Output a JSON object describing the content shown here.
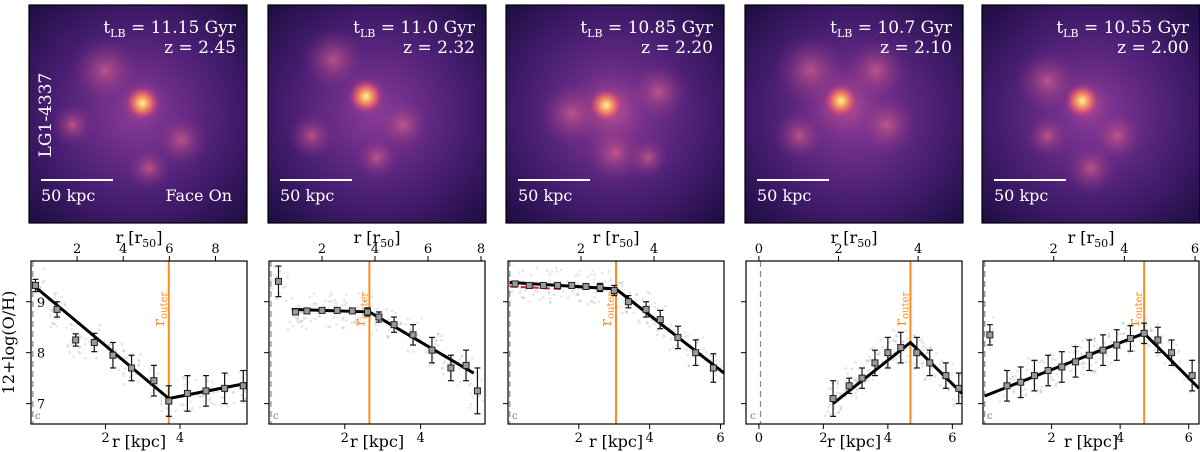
{
  "figure": {
    "galaxy_id": "LG1-4337",
    "image_panels": [
      {
        "t_lb_prefix": "t",
        "t_lb_sub": "LB",
        "t_lb_value": " = 11.15 Gyr",
        "redshift": "z = 2.45",
        "scale_label": "50 kpc",
        "view_label": "Face On"
      },
      {
        "t_lb_prefix": "t",
        "t_lb_sub": "LB",
        "t_lb_value": " = 11.0 Gyr",
        "redshift": "z = 2.32",
        "scale_label": "50 kpc",
        "view_label": ""
      },
      {
        "t_lb_prefix": "t",
        "t_lb_sub": "LB",
        "t_lb_value": " = 10.85 Gyr",
        "redshift": "z = 2.20",
        "scale_label": "50 kpc",
        "view_label": ""
      },
      {
        "t_lb_prefix": "t",
        "t_lb_sub": "LB",
        "t_lb_value": " = 10.7 Gyr",
        "redshift": "z = 2.10",
        "scale_label": "50 kpc",
        "view_label": ""
      },
      {
        "t_lb_prefix": "t",
        "t_lb_sub": "LB",
        "t_lb_value": " = 10.55 Gyr",
        "redshift": "z = 2.00",
        "scale_label": "50 kpc",
        "view_label": ""
      }
    ]
  },
  "chart_data": [
    {
      "type": "scatter",
      "title": "",
      "xlabel": "r [kpc]",
      "ylabel": "12+log(O/H)",
      "top_xlabel": "r [r",
      "top_xlabel_sub": "50",
      "top_xlabel_end": "]",
      "xlim": [
        0,
        5.8
      ],
      "ylim": [
        6.6,
        9.8
      ],
      "yticks": [
        7,
        8,
        9
      ],
      "xticks": [
        2,
        4
      ],
      "top_ticks": [
        2,
        4,
        6,
        8
      ],
      "top_scale": 1.615,
      "r_outer": 3.7,
      "r_outer_label": "r",
      "r_outer_sub": "outer",
      "r_inner_dash": 0.05,
      "fit": {
        "x": [
          0.1,
          3.7,
          5.8
        ],
        "y": [
          9.3,
          7.1,
          7.4
        ]
      },
      "red_fit": {
        "x": [
          0.1,
          0.9
        ],
        "y": [
          9.3,
          8.8
        ]
      },
      "points": {
        "x": [
          0.12,
          0.7,
          1.2,
          1.7,
          2.2,
          2.7,
          3.3,
          3.7,
          4.2,
          4.7,
          5.2,
          5.7
        ],
        "y": [
          9.32,
          8.85,
          8.25,
          8.2,
          7.95,
          7.7,
          7.45,
          7.05,
          7.2,
          7.25,
          7.3,
          7.35
        ],
        "err": [
          0.12,
          0.15,
          0.12,
          0.18,
          0.25,
          0.25,
          0.3,
          0.3,
          0.35,
          0.3,
          0.3,
          0.3
        ]
      }
    },
    {
      "type": "scatter",
      "title": "",
      "xlabel": "r [kpc]",
      "ylabel": "",
      "top_xlabel": "r [r",
      "top_xlabel_sub": "50",
      "top_xlabel_end": "]",
      "xlim": [
        0,
        5.7
      ],
      "ylim": [
        6.6,
        9.8
      ],
      "yticks": [
        7,
        8,
        9
      ],
      "xticks": [
        2,
        4
      ],
      "top_ticks": [
        2,
        4,
        6,
        8
      ],
      "top_scale": 1.43,
      "r_outer": 2.65,
      "r_outer_label": "r",
      "r_outer_sub": "outer",
      "r_inner_dash": 0.05,
      "fit": {
        "x": [
          0.6,
          2.65,
          5.4
        ],
        "y": [
          8.85,
          8.8,
          7.6
        ]
      },
      "red_fit": {
        "x": [],
        "y": []
      },
      "points": {
        "x": [
          0.25,
          0.7,
          1.0,
          1.4,
          1.8,
          2.2,
          2.6,
          2.9,
          3.3,
          3.8,
          4.3,
          4.8,
          5.2,
          5.5
        ],
        "y": [
          9.4,
          8.8,
          8.82,
          8.83,
          8.83,
          8.82,
          8.8,
          8.7,
          8.55,
          8.35,
          8.05,
          7.7,
          7.75,
          7.25
        ],
        "err": [
          0.3,
          0.05,
          0.05,
          0.05,
          0.05,
          0.05,
          0.08,
          0.1,
          0.15,
          0.2,
          0.25,
          0.25,
          0.3,
          0.45
        ]
      }
    },
    {
      "type": "scatter",
      "title": "",
      "xlabel": "r [kpc]",
      "ylabel": "",
      "top_xlabel": "r [r",
      "top_xlabel_sub": "50",
      "top_xlabel_end": "]",
      "xlim": [
        0,
        6.1
      ],
      "ylim": [
        6.6,
        9.8
      ],
      "yticks": [
        7,
        8,
        9
      ],
      "xticks": [
        2,
        4,
        6
      ],
      "top_ticks": [
        2,
        4,
        6
      ],
      "top_scale": 0.97,
      "r_outer": 3.05,
      "r_outer_label": "r",
      "r_outer_sub": "outer",
      "r_inner_dash": 0.05,
      "fit": {
        "x": [
          0.05,
          3.05,
          6.1
        ],
        "y": [
          9.38,
          9.25,
          7.6
        ]
      },
      "red_fit": {
        "x": [
          0.05,
          1.5
        ],
        "y": [
          9.3,
          9.25
        ]
      },
      "points": {
        "x": [
          0.2,
          0.6,
          1.0,
          1.4,
          1.8,
          2.2,
          2.6,
          3.0,
          3.4,
          3.9,
          4.3,
          4.8,
          5.3,
          5.8
        ],
        "y": [
          9.35,
          9.32,
          9.32,
          9.32,
          9.32,
          9.3,
          9.28,
          9.22,
          9.0,
          8.85,
          8.65,
          8.3,
          8.0,
          7.7
        ],
        "err": [
          0.05,
          0.05,
          0.05,
          0.05,
          0.05,
          0.05,
          0.08,
          0.1,
          0.12,
          0.15,
          0.18,
          0.22,
          0.25,
          0.28
        ]
      }
    },
    {
      "type": "scatter",
      "title": "",
      "xlabel": "r [kpc]",
      "ylabel": "",
      "top_xlabel": "r [r",
      "top_xlabel_sub": "50",
      "top_xlabel_end": "]",
      "xlim": [
        -0.4,
        6.3
      ],
      "ylim": [
        6.6,
        9.8
      ],
      "yticks": [
        7,
        8,
        9
      ],
      "xticks": [
        0,
        2,
        4,
        6
      ],
      "top_ticks": [
        0,
        2,
        4,
        6
      ],
      "top_scale": 0.81,
      "r_outer": 4.7,
      "r_outer_label": "r",
      "r_outer_sub": "outer",
      "r_inner_dash": 0.05,
      "fit": {
        "x": [
          2.3,
          4.7,
          6.3
        ],
        "y": [
          7.0,
          8.2,
          7.2
        ]
      },
      "red_fit": {
        "x": [],
        "y": []
      },
      "points": {
        "x": [
          2.3,
          2.8,
          3.2,
          3.6,
          4.0,
          4.4,
          4.9,
          5.3,
          5.8,
          6.2
        ],
        "y": [
          7.1,
          7.35,
          7.5,
          7.8,
          8.0,
          8.1,
          8.0,
          7.8,
          7.55,
          7.3
        ],
        "err": [
          0.35,
          0.15,
          0.2,
          0.25,
          0.3,
          0.3,
          0.3,
          0.25,
          0.25,
          0.3
        ]
      }
    },
    {
      "type": "scatter",
      "title": "",
      "xlabel": "r [kpc]",
      "ylabel": "",
      "top_xlabel": "r [r",
      "top_xlabel_sub": "50",
      "top_xlabel_end": "]",
      "xlim": [
        0,
        6.3
      ],
      "ylim": [
        6.6,
        9.8
      ],
      "yticks": [
        7,
        8,
        9
      ],
      "xticks": [
        2,
        4,
        6
      ],
      "top_ticks": [
        2,
        4,
        6
      ],
      "top_scale": 0.97,
      "r_outer": 4.7,
      "r_outer_label": "r",
      "r_outer_sub": "outer",
      "r_inner_dash": 0.05,
      "fit": {
        "x": [
          0.05,
          4.7,
          6.3
        ],
        "y": [
          7.15,
          8.38,
          7.3
        ]
      },
      "red_fit": {
        "x": [],
        "y": []
      },
      "points": {
        "x": [
          0.2,
          0.7,
          1.1,
          1.5,
          1.9,
          2.3,
          2.7,
          3.1,
          3.5,
          3.9,
          4.3,
          4.7,
          5.1,
          5.5,
          6.1
        ],
        "y": [
          8.35,
          7.35,
          7.42,
          7.55,
          7.65,
          7.72,
          7.82,
          7.95,
          8.05,
          8.15,
          8.28,
          8.38,
          8.25,
          8.0,
          7.55
        ],
        "err": [
          0.2,
          0.3,
          0.3,
          0.3,
          0.3,
          0.3,
          0.3,
          0.3,
          0.3,
          0.3,
          0.25,
          0.2,
          0.25,
          0.25,
          0.3
        ]
      }
    }
  ]
}
